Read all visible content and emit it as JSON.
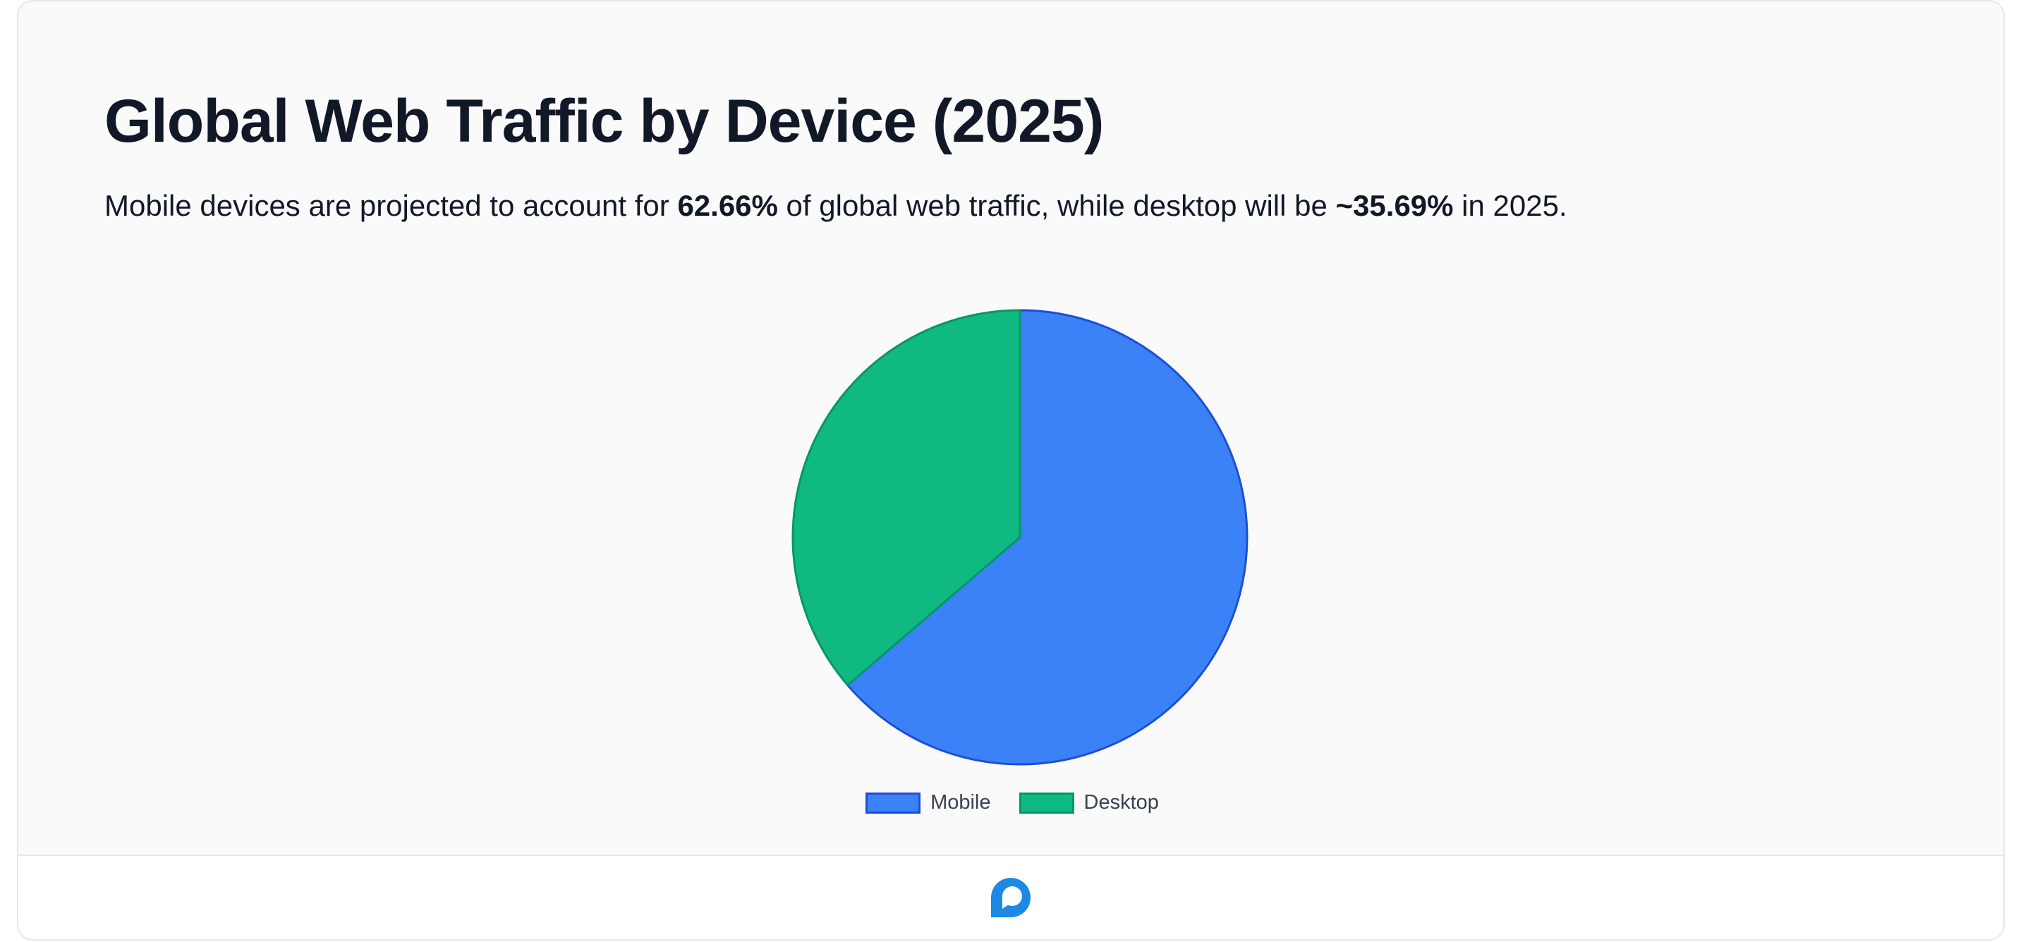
{
  "title": "Global Web Traffic by Device (2025)",
  "subtitle": {
    "part1": "Mobile devices are projected to account for ",
    "mobile_pct": "62.66%",
    "part2": " of global web traffic, while desktop will be ",
    "desktop_pct": "~35.69%",
    "part3": " in 2025."
  },
  "chart_data": {
    "type": "pie",
    "categories": [
      "Mobile",
      "Desktop"
    ],
    "values": [
      62.66,
      35.69
    ],
    "colors": [
      "#3b82f6",
      "#10b981"
    ],
    "border_colors": [
      "#1d4ed8",
      "#059669"
    ],
    "legend_position": "bottom"
  },
  "footer": {
    "logo_icon": "chat-bubble-logo-icon",
    "logo_color": "#1e88e5"
  }
}
